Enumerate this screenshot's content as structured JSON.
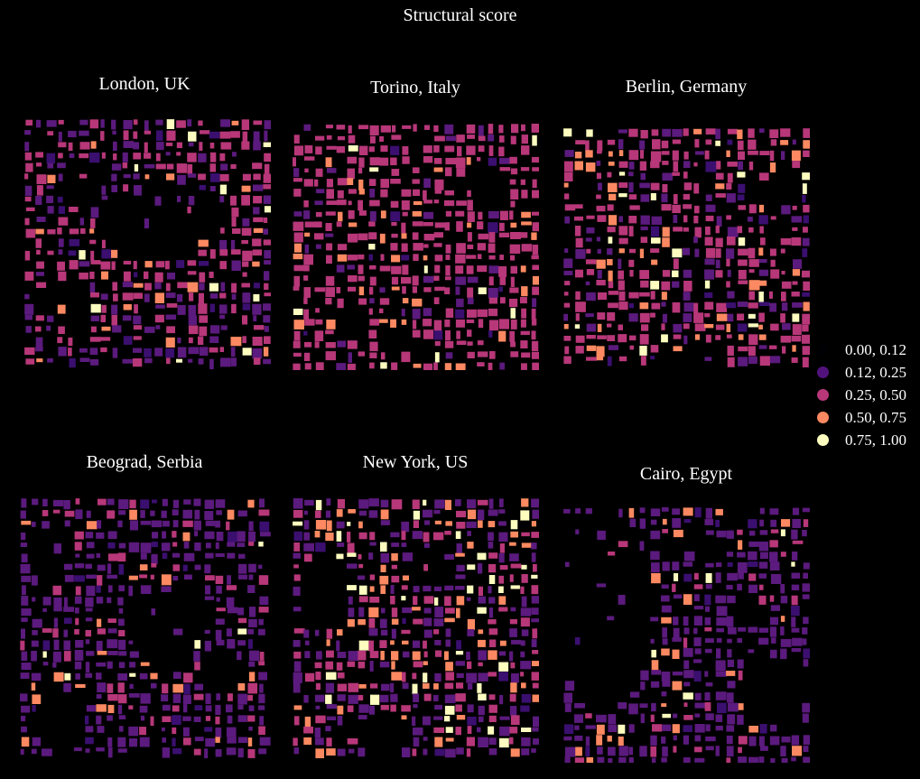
{
  "figure_title": "Structural score",
  "colors": {
    "background": "#000000",
    "text": "#ffffff",
    "bins": [
      "#3b0f70",
      "#5b1a7d",
      "#b73779",
      "#fc8961",
      "#fcfdbf"
    ]
  },
  "legend": {
    "items": [
      {
        "label": "0.00, 0.12",
        "color": "#000004"
      },
      {
        "label": "0.12, 0.25",
        "color": "#51127c"
      },
      {
        "label": "0.25, 0.50",
        "color": "#b73779"
      },
      {
        "label": "0.50, 0.75",
        "color": "#fc8961"
      },
      {
        "label": "0.75, 1.00",
        "color": "#fcfdbf"
      }
    ]
  },
  "panels": [
    {
      "title": "London, UK",
      "mix": [
        0.05,
        0.38,
        0.47,
        0.07,
        0.03
      ]
    },
    {
      "title": "Torino, Italy",
      "mix": [
        0.02,
        0.12,
        0.74,
        0.09,
        0.03
      ]
    },
    {
      "title": "Berlin, Germany",
      "mix": [
        0.03,
        0.22,
        0.58,
        0.12,
        0.05
      ]
    },
    {
      "title": "Beograd, Serbia",
      "mix": [
        0.05,
        0.7,
        0.18,
        0.05,
        0.02
      ]
    },
    {
      "title": "New York, US",
      "mix": [
        0.03,
        0.4,
        0.33,
        0.16,
        0.08
      ]
    },
    {
      "title": "Cairo, Egypt",
      "mix": [
        0.05,
        0.72,
        0.1,
        0.1,
        0.03
      ]
    }
  ]
}
